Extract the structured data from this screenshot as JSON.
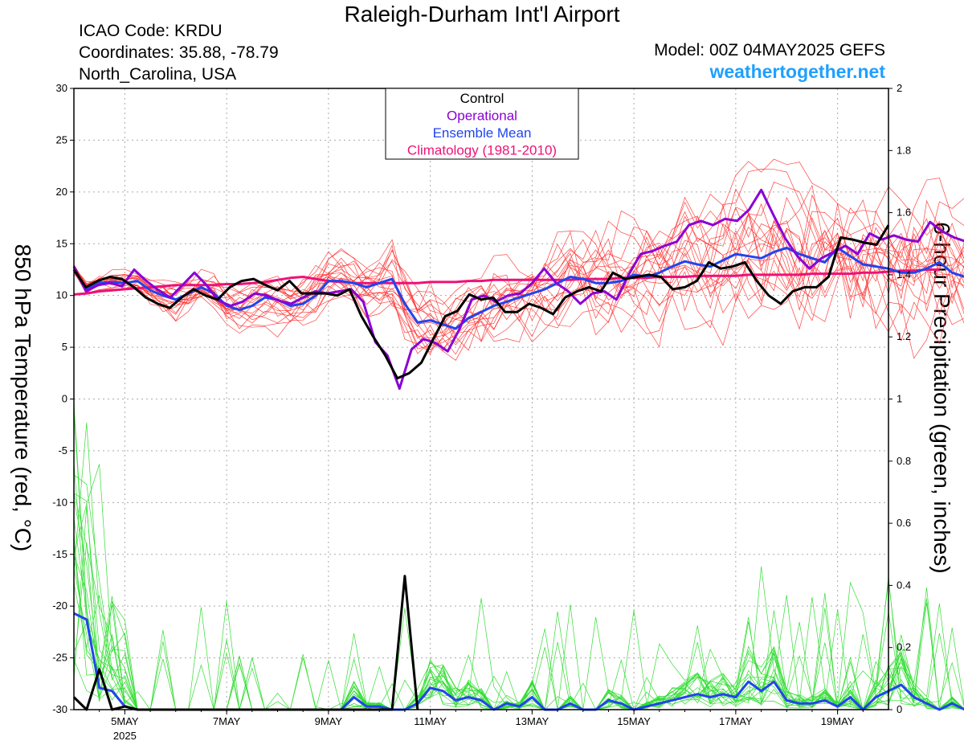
{
  "header": {
    "title": "Raleigh-Durham Int'l Airport",
    "icao": "ICAO Code: KRDU",
    "coords": "Coordinates: 35.88, -78.79",
    "region": "North_Carolina, USA",
    "model": "Model: 00Z 04MAY2025 GEFS",
    "site": "weathertogether.net"
  },
  "chart_data": {
    "type": "line",
    "ylabel_left": "850 hPa Temperature (red, °C)",
    "ylabel_right": "6-hour Precipitation (green, inches)",
    "y_left_range": [
      -30,
      30
    ],
    "y_left_ticks": [
      "30",
      "25",
      "20",
      "15",
      "10",
      "5",
      "0",
      "-5",
      "-10",
      "-15",
      "-20",
      "-25",
      "-30"
    ],
    "y_right_range": [
      0,
      2
    ],
    "y_right_ticks": [
      "2",
      "1.8",
      "1.6",
      "1.4",
      "1.2",
      "1",
      "0.8",
      "0.6",
      "0.4",
      "0.2",
      "0"
    ],
    "x_range_days": [
      4.0,
      20.0
    ],
    "x_ticks": [
      {
        "day": 5,
        "label": "5MAY",
        "sub": "2025"
      },
      {
        "day": 7,
        "label": "7MAY",
        "sub": ""
      },
      {
        "day": 9,
        "label": "9MAY",
        "sub": ""
      },
      {
        "day": 11,
        "label": "11MAY",
        "sub": ""
      },
      {
        "day": 13,
        "label": "13MAY",
        "sub": ""
      },
      {
        "day": 15,
        "label": "15MAY",
        "sub": ""
      },
      {
        "day": 17,
        "label": "17MAY",
        "sub": ""
      },
      {
        "day": 19,
        "label": "19MAY",
        "sub": ""
      }
    ],
    "grid": true,
    "legend": {
      "placement": "top-center",
      "entries": [
        {
          "label": "Control",
          "color": "#000000"
        },
        {
          "label": "Operational",
          "color": "#8a00d4"
        },
        {
          "label": "Ensemble Mean",
          "color": "#2244ee"
        },
        {
          "label": "Climatology (1981-2010)",
          "color": "#ee1177"
        }
      ]
    },
    "colors": {
      "member_temp": "#ff3030",
      "member_precip": "#33dd33",
      "control": "#000000",
      "operational": "#8a00d4",
      "mean": "#2244ee",
      "climatology": "#ee1177"
    },
    "temperature": {
      "step_days": 0.25,
      "start_day": 4.0,
      "control": [
        12.5,
        10.8,
        11.4,
        11.8,
        11.6,
        10.8,
        9.8,
        9.2,
        8.8,
        9.8,
        10.6,
        10.0,
        9.6,
        10.8,
        11.4,
        11.6,
        11.0,
        10.5,
        11.4,
        10.2,
        10.2,
        10.2,
        10.0,
        10.6,
        8.0,
        6.0,
        4.2,
        2.0,
        2.5,
        3.5,
        5.8,
        8.0,
        8.5,
        10.1,
        9.6,
        9.8,
        8.4,
        8.4,
        9.2,
        8.8,
        8.2,
        9.8,
        10.4,
        10.8,
        10.4,
        12.2,
        11.6,
        11.8,
        12.0,
        11.8,
        10.6,
        10.8,
        11.4,
        13.2,
        12.6,
        12.8,
        13.2,
        11.4,
        10.0,
        9.2,
        10.4,
        10.8,
        10.8,
        11.8,
        15.6,
        15.4,
        15.1,
        14.9,
        16.8
      ],
      "operational": [
        12.8,
        10.4,
        11.0,
        11.2,
        10.9,
        12.5,
        11.4,
        10.5,
        9.8,
        11.0,
        12.2,
        11.0,
        9.5,
        9.0,
        9.4,
        10.2,
        10.0,
        9.5,
        9.2,
        9.8,
        10.4,
        10.2,
        10.4,
        10.6,
        9.4,
        5.5,
        4.2,
        1.0,
        4.8,
        5.8,
        5.4,
        4.6,
        6.8,
        9.6,
        10.0,
        9.4,
        10.0,
        10.2,
        11.2,
        12.6,
        11.2,
        10.4,
        9.2,
        10.2,
        10.4,
        9.6,
        12.0,
        14.0,
        14.3,
        14.8,
        15.2,
        16.8,
        17.2,
        16.8,
        17.4,
        17.2,
        18.3,
        20.2,
        17.8,
        15.5,
        13.8,
        12.6,
        13.6,
        14.2,
        14.8,
        14.0,
        16.0,
        15.4,
        15.8,
        15.4,
        15.2,
        17.1,
        16.2,
        15.6,
        15.2,
        17.0,
        16.8
      ],
      "mean": [
        12.5,
        10.6,
        11.2,
        11.3,
        11.2,
        11.4,
        10.5,
        10.0,
        9.6,
        10.2,
        10.8,
        10.2,
        9.0,
        8.6,
        9.0,
        9.8,
        9.6,
        9.0,
        9.2,
        10.0,
        11.4,
        11.4,
        11.2,
        10.8,
        11.2,
        11.6,
        9.2,
        7.4,
        7.6,
        7.2,
        6.8,
        7.8,
        8.4,
        9.0,
        9.4,
        9.8,
        10.2,
        10.6,
        11.2,
        11.8,
        11.6,
        11.2,
        11.2,
        11.4,
        12.0,
        11.8,
        12.2,
        12.8,
        13.3,
        13.0,
        12.8,
        13.4,
        14.0,
        13.8,
        13.6,
        14.2,
        14.6,
        14.0,
        13.6,
        13.2,
        14.6,
        13.8,
        13.0,
        12.8,
        12.6,
        12.2,
        12.2,
        12.6,
        13.2,
        12.2,
        11.8,
        11.8,
        12.6
      ],
      "climatology": [
        10.1,
        10.2,
        10.4,
        10.5,
        10.6,
        10.7,
        10.8,
        10.9,
        11.0,
        11.0,
        11.0,
        11.0,
        11.1,
        11.1,
        11.2,
        11.3,
        11.5,
        11.7,
        11.8,
        11.6,
        11.4,
        11.3,
        11.2,
        11.2,
        11.2,
        11.2,
        11.2,
        11.2,
        11.3,
        11.3,
        11.3,
        11.4,
        11.4,
        11.5,
        11.5,
        11.5,
        11.5,
        11.5,
        11.5,
        11.5,
        11.6,
        11.6,
        11.6,
        11.7,
        11.7,
        11.7,
        11.8,
        11.8,
        11.8,
        11.9,
        11.9,
        11.9,
        11.9,
        12.0,
        12.0,
        12.0,
        12.0,
        12.0,
        12.1,
        12.1,
        12.1,
        12.1,
        12.2,
        12.2,
        12.3,
        12.4,
        12.4,
        12.5,
        12.5
      ]
    },
    "precipitation": {
      "step_days": 0.25,
      "start_day": 4.0,
      "control": [
        0.04,
        0.0,
        0.13,
        0.0,
        0.01,
        0.0,
        0.0,
        0.0,
        0.0,
        0.0,
        0.0,
        0.0,
        0.0,
        0.0,
        0.0,
        0.0,
        0.0,
        0.0,
        0.0,
        0.0,
        0.0,
        0.0,
        0.0,
        0.0,
        0.0,
        0.0,
        0.43,
        0.0
      ],
      "mean": [
        0.31,
        0.29,
        0.07,
        0.06,
        0.01,
        0.0,
        0.0,
        0.0,
        0.0,
        0.0,
        0.0,
        0.0,
        0.0,
        0.0,
        0.0,
        0.0,
        0.0,
        0.0,
        0.0,
        0.0,
        0.0,
        0.0,
        0.04,
        0.01,
        0.01,
        0.0,
        0.0,
        0.02,
        0.07,
        0.06,
        0.03,
        0.04,
        0.03,
        0.0,
        0.02,
        0.01,
        0.04,
        0.0,
        0.0,
        0.02,
        0.0,
        0.0,
        0.03,
        0.02,
        0.0,
        0.01,
        0.02,
        0.03,
        0.04,
        0.05,
        0.04,
        0.05,
        0.04,
        0.09,
        0.06,
        0.09,
        0.03,
        0.02,
        0.02,
        0.03,
        0.01,
        0.04,
        0.0,
        0.04,
        0.06,
        0.08,
        0.04,
        0.02,
        0.0,
        0.02,
        0.0,
        0.03,
        0.01,
        0.0,
        0.03,
        0.05,
        0.04,
        0.02,
        0.05,
        0.02,
        0.03,
        0.0,
        0.04,
        0.02,
        0.11,
        0.04,
        0.0,
        0.01,
        0.02,
        0.01
      ]
    }
  }
}
